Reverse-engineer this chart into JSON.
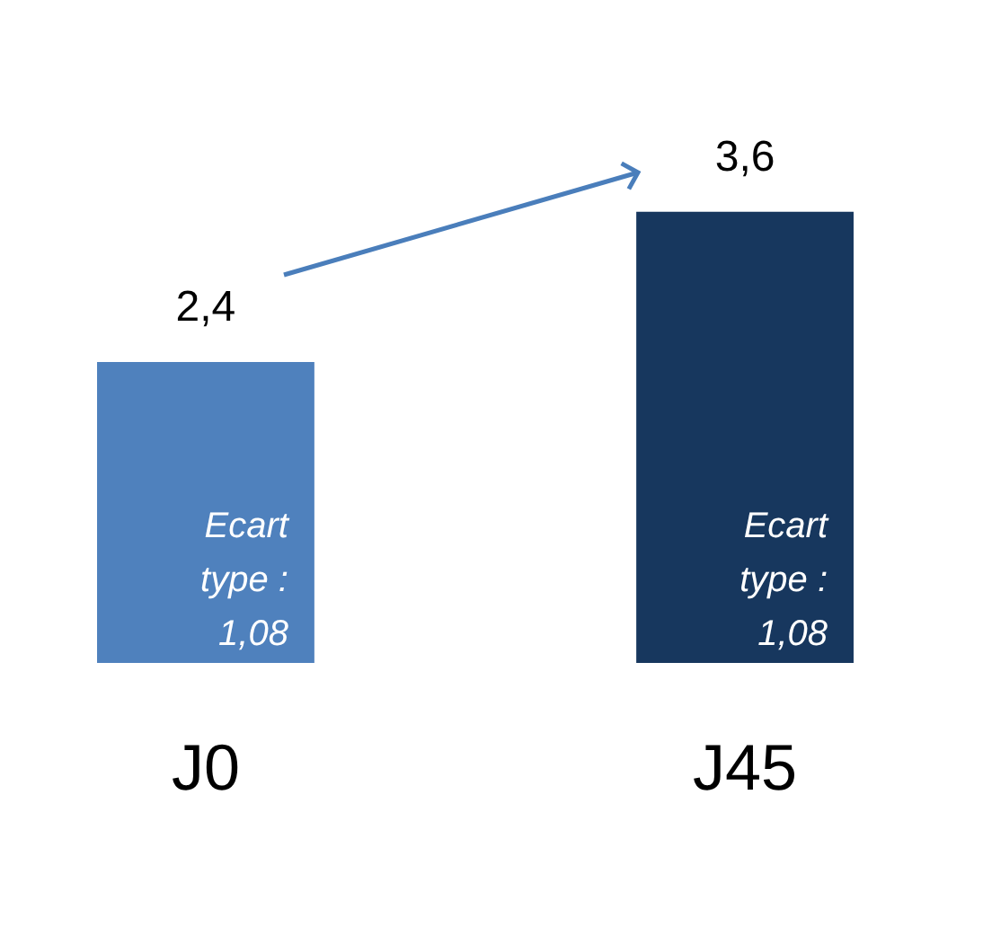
{
  "chart_data": {
    "type": "bar",
    "categories": [
      "J0",
      "J45"
    ],
    "values": [
      2.4,
      3.6
    ],
    "colors": [
      "#4f81bd",
      "#17375e"
    ],
    "value_labels": [
      "2,4",
      "3,6"
    ],
    "annotations": [
      "Ecart type : 1,08",
      "Ecart type : 1,08"
    ],
    "grid": false,
    "tick_labels": "x"
  }
}
